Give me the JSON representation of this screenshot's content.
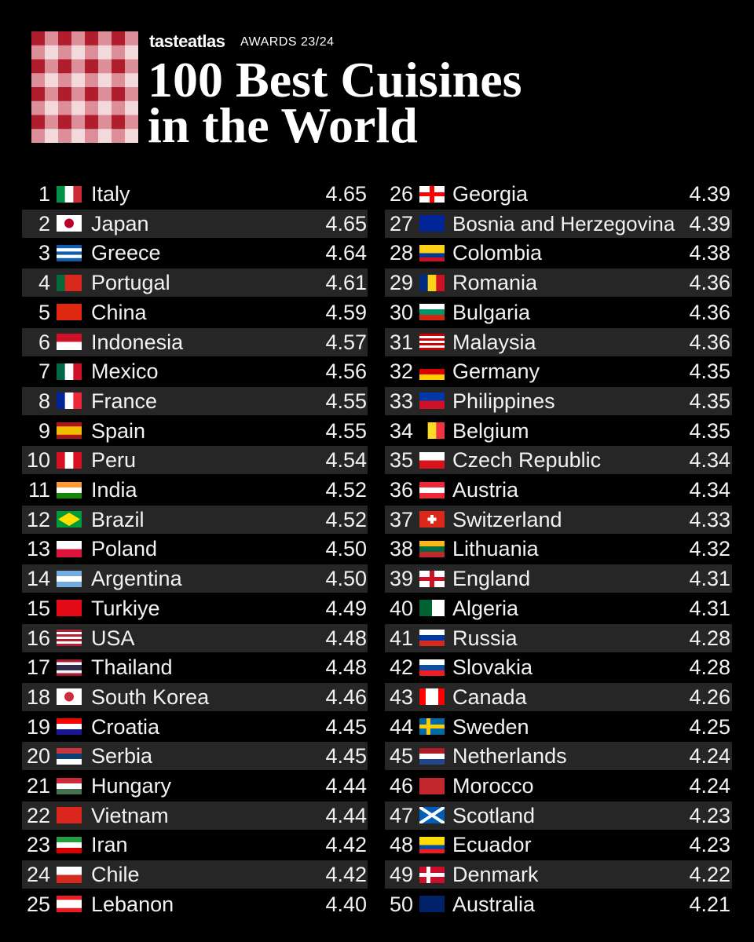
{
  "header": {
    "brand": "tasteatlas",
    "awards": "AWARDS 23/24",
    "title_line_1": "100 Best Cuisines",
    "title_line_2": "in the World"
  },
  "rankings": [
    {
      "rank": 1,
      "country": "Italy",
      "score": "4.65"
    },
    {
      "rank": 2,
      "country": "Japan",
      "score": "4.65"
    },
    {
      "rank": 3,
      "country": "Greece",
      "score": "4.64"
    },
    {
      "rank": 4,
      "country": "Portugal",
      "score": "4.61"
    },
    {
      "rank": 5,
      "country": "China",
      "score": "4.59"
    },
    {
      "rank": 6,
      "country": "Indonesia",
      "score": "4.57"
    },
    {
      "rank": 7,
      "country": "Mexico",
      "score": "4.56"
    },
    {
      "rank": 8,
      "country": "France",
      "score": "4.55"
    },
    {
      "rank": 9,
      "country": "Spain",
      "score": "4.55"
    },
    {
      "rank": 10,
      "country": "Peru",
      "score": "4.54"
    },
    {
      "rank": 11,
      "country": "India",
      "score": "4.52"
    },
    {
      "rank": 12,
      "country": "Brazil",
      "score": "4.52"
    },
    {
      "rank": 13,
      "country": "Poland",
      "score": "4.50"
    },
    {
      "rank": 14,
      "country": "Argentina",
      "score": "4.50"
    },
    {
      "rank": 15,
      "country": "Turkiye",
      "score": "4.49"
    },
    {
      "rank": 16,
      "country": "USA",
      "score": "4.48"
    },
    {
      "rank": 17,
      "country": "Thailand",
      "score": "4.48"
    },
    {
      "rank": 18,
      "country": "South Korea",
      "score": "4.46"
    },
    {
      "rank": 19,
      "country": "Croatia",
      "score": "4.45"
    },
    {
      "rank": 20,
      "country": "Serbia",
      "score": "4.45"
    },
    {
      "rank": 21,
      "country": "Hungary",
      "score": "4.44"
    },
    {
      "rank": 22,
      "country": "Vietnam",
      "score": "4.44"
    },
    {
      "rank": 23,
      "country": "Iran",
      "score": "4.42"
    },
    {
      "rank": 24,
      "country": "Chile",
      "score": "4.42"
    },
    {
      "rank": 25,
      "country": "Lebanon",
      "score": "4.40"
    },
    {
      "rank": 26,
      "country": "Georgia",
      "score": "4.39"
    },
    {
      "rank": 27,
      "country": "Bosnia and Herzegovina",
      "score": "4.39"
    },
    {
      "rank": 28,
      "country": "Colombia",
      "score": "4.38"
    },
    {
      "rank": 29,
      "country": "Romania",
      "score": "4.36"
    },
    {
      "rank": 30,
      "country": "Bulgaria",
      "score": "4.36"
    },
    {
      "rank": 31,
      "country": "Malaysia",
      "score": "4.36"
    },
    {
      "rank": 32,
      "country": "Germany",
      "score": "4.35"
    },
    {
      "rank": 33,
      "country": "Philippines",
      "score": "4.35"
    },
    {
      "rank": 34,
      "country": "Belgium",
      "score": "4.35"
    },
    {
      "rank": 35,
      "country": "Czech Republic",
      "score": "4.34"
    },
    {
      "rank": 36,
      "country": "Austria",
      "score": "4.34"
    },
    {
      "rank": 37,
      "country": "Switzerland",
      "score": "4.33"
    },
    {
      "rank": 38,
      "country": "Lithuania",
      "score": "4.32"
    },
    {
      "rank": 39,
      "country": "England",
      "score": "4.31"
    },
    {
      "rank": 40,
      "country": "Algeria",
      "score": "4.31"
    },
    {
      "rank": 41,
      "country": "Russia",
      "score": "4.28"
    },
    {
      "rank": 42,
      "country": "Slovakia",
      "score": "4.28"
    },
    {
      "rank": 43,
      "country": "Canada",
      "score": "4.26"
    },
    {
      "rank": 44,
      "country": "Sweden",
      "score": "4.25"
    },
    {
      "rank": 45,
      "country": "Netherlands",
      "score": "4.24"
    },
    {
      "rank": 46,
      "country": "Morocco",
      "score": "4.24"
    },
    {
      "rank": 47,
      "country": "Scotland",
      "score": "4.23"
    },
    {
      "rank": 48,
      "country": "Ecuador",
      "score": "4.23"
    },
    {
      "rank": 49,
      "country": "Denmark",
      "score": "4.22"
    },
    {
      "rank": 50,
      "country": "Australia",
      "score": "4.21"
    }
  ]
}
